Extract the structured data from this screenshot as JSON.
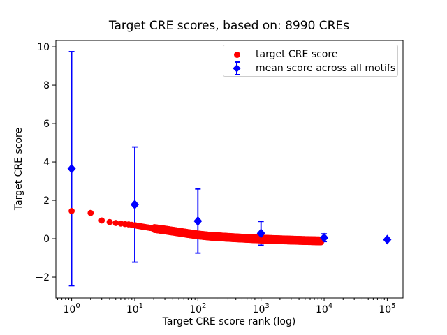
{
  "figure": {
    "background": "#ffffff",
    "text_color": "#000000",
    "spine_color": "#000000"
  },
  "chart_data": {
    "type": "scatter",
    "title": "Target CRE scores, based on: 8990 CREs",
    "xlabel": "Target CRE score rank (log)",
    "ylabel": "Target CRE score",
    "x_scale": "log",
    "xlim_log10": [
      -0.25,
      5.25
    ],
    "ylim": [
      -3.09,
      10.33
    ],
    "grid": false,
    "legend_position": "upper right",
    "x_major_ticks": [
      {
        "base": "10",
        "exp": "0",
        "value": 1
      },
      {
        "base": "10",
        "exp": "1",
        "value": 10
      },
      {
        "base": "10",
        "exp": "2",
        "value": 100
      },
      {
        "base": "10",
        "exp": "3",
        "value": 1000
      },
      {
        "base": "10",
        "exp": "4",
        "value": 10000
      },
      {
        "base": "10",
        "exp": "5",
        "value": 100000
      }
    ],
    "y_ticks": [
      {
        "label": "−2",
        "value": -2
      },
      {
        "label": "0",
        "value": 0
      },
      {
        "label": "2",
        "value": 2
      },
      {
        "label": "4",
        "value": 4
      },
      {
        "label": "6",
        "value": 6
      },
      {
        "label": "8",
        "value": 8
      },
      {
        "label": "10",
        "value": 10
      }
    ],
    "series": [
      {
        "name": "target CRE score",
        "type": "scatter",
        "marker": "circle",
        "color": "#ff0000",
        "n_points": 8990,
        "curve_rank_score": [
          [
            1,
            1.44
          ],
          [
            2,
            1.34
          ],
          [
            3,
            0.95
          ],
          [
            4,
            0.87
          ],
          [
            5,
            0.82
          ],
          [
            6,
            0.79
          ],
          [
            7,
            0.765
          ],
          [
            8,
            0.745
          ],
          [
            10,
            0.7
          ],
          [
            14,
            0.615
          ],
          [
            20,
            0.535
          ],
          [
            30,
            0.455
          ],
          [
            50,
            0.345
          ],
          [
            70,
            0.27
          ],
          [
            100,
            0.195
          ],
          [
            150,
            0.135
          ],
          [
            250,
            0.085
          ],
          [
            400,
            0.045
          ],
          [
            700,
            0.005
          ],
          [
            1200,
            -0.03
          ],
          [
            2500,
            -0.065
          ],
          [
            5000,
            -0.095
          ],
          [
            8990,
            -0.115
          ]
        ]
      },
      {
        "name": "mean score across all motifs",
        "type": "errorbar",
        "marker": "diamond",
        "color": "#0000ff",
        "points": [
          {
            "x": 1,
            "y": 3.65,
            "err": 6.1
          },
          {
            "x": 10,
            "y": 1.78,
            "err": 3.0
          },
          {
            "x": 100,
            "y": 0.92,
            "err": 1.67
          },
          {
            "x": 1000,
            "y": 0.28,
            "err": 0.62
          },
          {
            "x": 10000,
            "y": 0.05,
            "err": 0.2
          },
          {
            "x": 100000,
            "y": -0.05,
            "err": 0.05
          }
        ]
      }
    ]
  }
}
